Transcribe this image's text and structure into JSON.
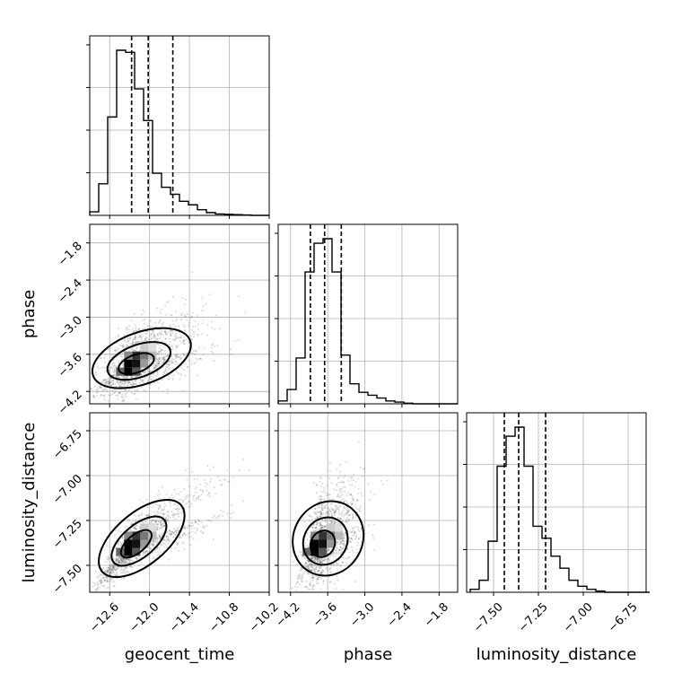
{
  "chart_data": {
    "type": "corner",
    "parameters": [
      "geocent_time",
      "phase",
      "luminosity_distance"
    ],
    "axes": {
      "geocent_time": {
        "range": [
          -12.9,
          -10.2
        ],
        "ticks": [
          -12.6,
          -12.0,
          -11.4,
          -10.8,
          -10.2
        ],
        "tick_labels": [
          "−12.6",
          "−12.0",
          "−11.4",
          "−10.8",
          "−10.2"
        ],
        "quantiles": [
          -12.27,
          -12.02,
          -11.65
        ],
        "hist_edges_start": -12.9,
        "hist_bin_width": 0.135,
        "hist_counts": [
          0.5,
          4.5,
          14,
          23.5,
          23.2,
          18,
          13.5,
          6,
          4,
          3,
          2,
          1.5,
          0.8,
          0.4,
          0.2,
          0.15,
          0.1,
          0.05,
          0,
          0
        ]
      },
      "phase": {
        "range": [
          -4.4,
          -1.5
        ],
        "ticks": [
          -4.2,
          -3.6,
          -3.0,
          -2.4,
          -1.8
        ],
        "tick_labels": [
          "−4.2",
          "−3.6",
          "−3.0",
          "−2.4",
          "−1.8"
        ],
        "quantiles": [
          -3.88,
          -3.65,
          -3.38
        ],
        "hist_edges_start": -4.4,
        "hist_bin_width": 0.145,
        "hist_counts": [
          0.5,
          2.5,
          8,
          23,
          28,
          28.8,
          23,
          8.5,
          3.5,
          2,
          1.5,
          1,
          0.5,
          0.3,
          0.1,
          0,
          0,
          0,
          0,
          0
        ]
      },
      "luminosity_distance": {
        "range": [
          -7.65,
          -6.65
        ],
        "ticks": [
          -7.5,
          -7.25,
          -7.0,
          -6.75
        ],
        "tick_labels": [
          "−7.50",
          "−7.25",
          "−7.00",
          "−6.75"
        ],
        "quantiles": [
          -7.44,
          -7.36,
          -7.21
        ],
        "hist_edges_start": -7.63,
        "hist_bin_width": 0.05,
        "hist_counts": [
          0.5,
          2,
          8.5,
          21,
          26,
          27.5,
          21,
          11,
          9,
          6,
          4,
          2,
          1,
          0.5,
          0.2,
          0,
          0,
          0,
          0,
          0
        ]
      }
    },
    "labels": {
      "x": [
        "geocent_time",
        "phase",
        "luminosity_distance"
      ],
      "y": [
        "phase",
        "luminosity_distance"
      ]
    },
    "grid": true
  },
  "colors": {
    "ink": "#000000",
    "grid": "#b0b0b0",
    "points": "#555555"
  }
}
